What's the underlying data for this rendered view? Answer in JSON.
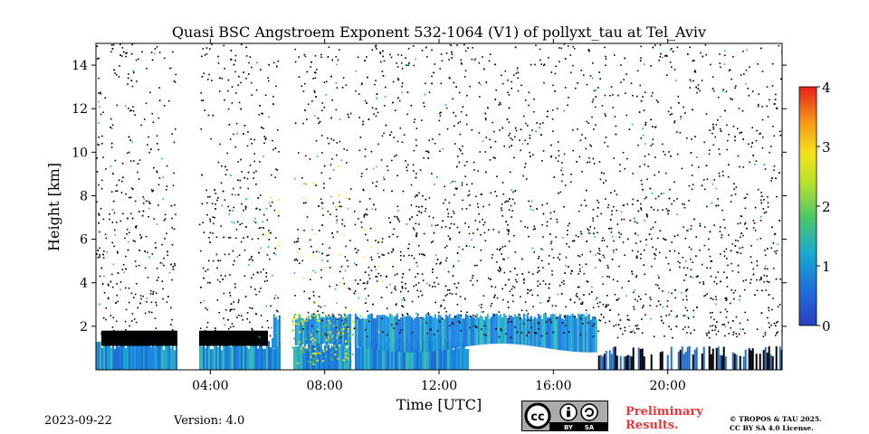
{
  "chart_data": {
    "type": "heatmap",
    "title": "Quasi BSC Angstroem Exponent 532-1064 (V1) of pollyxt_tau at Tel_Aviv",
    "xlabel": "Time [UTC]",
    "ylabel": "Height [km]",
    "x_ticks": [
      "04:00",
      "08:00",
      "12:00",
      "16:00",
      "20:00"
    ],
    "x_tick_hours": [
      4,
      8,
      12,
      16,
      20
    ],
    "xlim_hours": [
      0,
      24
    ],
    "y_ticks": [
      "2",
      "4",
      "6",
      "8",
      "10",
      "12",
      "14"
    ],
    "y_tick_values": [
      2,
      4,
      6,
      8,
      10,
      12,
      14
    ],
    "ylim_km": [
      0,
      15
    ],
    "colorbar": {
      "ticks": [
        "0",
        "1",
        "2",
        "3",
        "4"
      ],
      "range": [
        0,
        4
      ],
      "colormap": "jet"
    },
    "colors": {
      "low_layer": "#1f86e0",
      "mid_layer": "#1e6fd0",
      "noise": "#000000",
      "high": "#f7e51a",
      "green": "#5bc24a"
    },
    "features": [
      {
        "name": "aerosol layer",
        "time_hours": [
          6.2,
          17.5
        ],
        "height_km": [
          1.0,
          2.6
        ],
        "value_approx": 0.8
      },
      {
        "name": "boundary layer",
        "time_hours": [
          0,
          13.0
        ],
        "height_km": [
          0,
          1.8
        ],
        "value_approx": 0.9
      },
      {
        "name": "data gaps",
        "time_hours": [
          [
            2.8,
            3.6
          ],
          [
            6.4,
            6.9
          ],
          [
            8.9,
            9.0
          ]
        ]
      }
    ]
  },
  "footer": {
    "date": "2023-09-22",
    "version": "Version: 4.0",
    "preliminary_line1": "Preliminary",
    "preliminary_line2": "Results.",
    "copyright_line1": "© TROPOS & TAU 2025.",
    "copyright_line2": "CC BY SA 4.0 License.",
    "license_badge": {
      "by": "BY",
      "sa": "SA"
    }
  }
}
